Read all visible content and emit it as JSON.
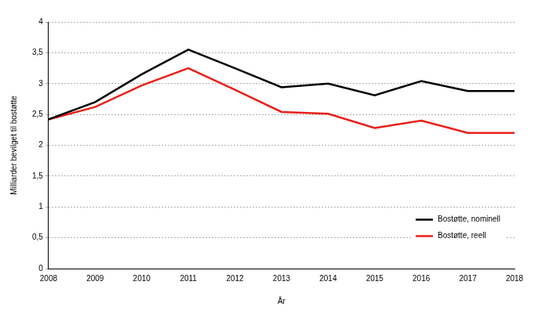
{
  "chart_data": {
    "type": "line",
    "x_label": "År",
    "y_label": "Milliarder bevilget til bostøtte",
    "categories": [
      "2008",
      "2009",
      "2010",
      "2011",
      "2012",
      "2013",
      "2014",
      "2015",
      "2016",
      "2017",
      "2018"
    ],
    "series": [
      {
        "name": "Bostøtte, nominell",
        "color": "#000000",
        "values": [
          2.42,
          2.7,
          3.15,
          3.55,
          3.25,
          2.94,
          3.0,
          2.81,
          3.04,
          2.88,
          2.88
        ]
      },
      {
        "name": "Bostøtte, reell",
        "color": "#e8201a",
        "values": [
          2.42,
          2.62,
          2.97,
          3.25,
          2.9,
          2.54,
          2.51,
          2.28,
          2.4,
          2.2,
          2.2
        ]
      }
    ],
    "ylim": [
      0,
      4
    ],
    "yticks": [
      0,
      {
        "value": 0.5,
        "label": "0,5"
      },
      1,
      {
        "value": 1.5,
        "label": "1,5"
      },
      2,
      {
        "value": 2.5,
        "label": "2,5"
      },
      3,
      {
        "value": 3.5,
        "label": "3,5"
      },
      4
    ],
    "grid": true,
    "legend": "lower right"
  }
}
